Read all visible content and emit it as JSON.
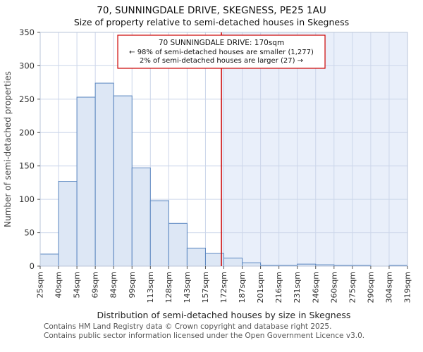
{
  "title": "70, SUNNINGDALE DRIVE, SKEGNESS, PE25 1AU",
  "subtitle": "Size of property relative to semi-detached houses in Skegness",
  "footer": {
    "line1": "Contains HM Land Registry data © Crown copyright and database right 2025.",
    "line2": "Contains public sector information licensed under the Open Government Licence v3.0."
  },
  "chart_data": {
    "type": "bar",
    "title": "70, SUNNINGDALE DRIVE, SKEGNESS, PE25 1AU — Size of property relative to semi-detached houses in Skegness",
    "xlabel": "Distribution of semi-detached houses by size in Skegness",
    "ylabel": "Number of semi-detached properties",
    "ylim": [
      0,
      350
    ],
    "ytick_step": 50,
    "grid": true,
    "bin_edges_sqm": [
      25,
      40,
      54,
      69,
      84,
      99,
      113,
      128,
      143,
      157,
      172,
      187,
      201,
      216,
      231,
      246,
      260,
      275,
      290,
      304,
      319
    ],
    "categories": [
      "25sqm",
      "40sqm",
      "54sqm",
      "69sqm",
      "84sqm",
      "99sqm",
      "113sqm",
      "128sqm",
      "143sqm",
      "157sqm",
      "172sqm",
      "187sqm",
      "201sqm",
      "216sqm",
      "231sqm",
      "246sqm",
      "260sqm",
      "275sqm",
      "290sqm",
      "304sqm",
      "319sqm"
    ],
    "values": [
      18,
      127,
      253,
      274,
      255,
      147,
      98,
      64,
      27,
      19,
      12,
      5,
      1,
      1,
      3,
      2,
      1,
      1,
      0,
      1
    ],
    "marker": {
      "value_sqm": 170,
      "line1": "70 SUNNINGDALE DRIVE: 170sqm",
      "line2": "← 98% of semi-detached houses are smaller (1,277)",
      "line3": "2% of semi-detached houses are larger (27) →",
      "color": "#cc0000"
    },
    "colors": {
      "bar_fill": "#dde7f5",
      "bar_stroke": "#5a86c0",
      "grid": "#ccd6ea",
      "border": "#b9c4d8",
      "shade": "#e9effa",
      "tick_text": "#333333",
      "axis_text": "#444444"
    }
  }
}
